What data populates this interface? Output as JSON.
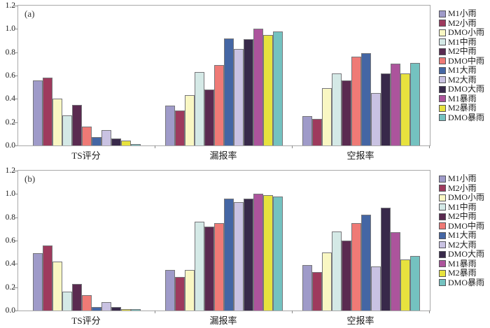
{
  "figure": {
    "background": "#ffffff",
    "axis_color": "#a9a9a9",
    "tick_color": "#8a8a8a",
    "bar_border_color": "#76767a"
  },
  "chart_data": [
    {
      "type": "bar",
      "panel_label": "(a)",
      "title": "",
      "xlabel": "",
      "ylabel": "",
      "ylim": [
        0,
        1.2
      ],
      "yticks": [
        "0.0",
        "0.2",
        "0.4",
        "0.6",
        "0.8",
        "1.0",
        "1.2"
      ],
      "grid": false,
      "legend_position": "right",
      "categories": [
        "TS评分",
        "漏报率",
        "空报率"
      ],
      "series": [
        {
          "name": "M1小雨",
          "color": "#9F9BC9",
          "values": [
            0.56,
            0.34,
            0.25
          ]
        },
        {
          "name": "M2小雨",
          "color": "#9E3A5D",
          "values": [
            0.58,
            0.3,
            0.23
          ]
        },
        {
          "name": "DMO小雨",
          "color": "#F9F7C3",
          "values": [
            0.4,
            0.43,
            0.49
          ]
        },
        {
          "name": "M1中雨",
          "color": "#D4E9E6",
          "values": [
            0.26,
            0.63,
            0.62
          ]
        },
        {
          "name": "M2中雨",
          "color": "#5A2A50",
          "values": [
            0.35,
            0.48,
            0.56
          ]
        },
        {
          "name": "DMO中雨",
          "color": "#EF7A76",
          "values": [
            0.16,
            0.69,
            0.76
          ]
        },
        {
          "name": "M1大雨",
          "color": "#4466A4",
          "values": [
            0.07,
            0.92,
            0.79
          ]
        },
        {
          "name": "M2大雨",
          "color": "#C9C2E2",
          "values": [
            0.13,
            0.83,
            0.45
          ]
        },
        {
          "name": "DMO大雨",
          "color": "#38294A",
          "values": [
            0.06,
            0.91,
            0.62
          ]
        },
        {
          "name": "M1暴雨",
          "color": "#AC549C",
          "values": [
            0.0,
            1.0,
            0.7
          ]
        },
        {
          "name": "M2暴雨",
          "color": "#E7E23E",
          "values": [
            0.04,
            0.95,
            0.62
          ]
        },
        {
          "name": "DMO暴雨",
          "color": "#74C2C0",
          "values": [
            0.01,
            0.98,
            0.71
          ]
        }
      ]
    },
    {
      "type": "bar",
      "panel_label": "(b)",
      "title": "",
      "xlabel": "",
      "ylabel": "",
      "ylim": [
        0,
        1.2
      ],
      "yticks": [
        "0.0",
        "0.2",
        "0.4",
        "0.6",
        "0.8",
        "1.0",
        "1.2"
      ],
      "grid": false,
      "legend_position": "right",
      "categories": [
        "TS评分",
        "漏报率",
        "空报率"
      ],
      "series": [
        {
          "name": "M1小雨",
          "color": "#9F9BC9",
          "values": [
            0.49,
            0.35,
            0.39
          ]
        },
        {
          "name": "M2小雨",
          "color": "#9E3A5D",
          "values": [
            0.56,
            0.29,
            0.33
          ]
        },
        {
          "name": "DMO小雨",
          "color": "#F9F7C3",
          "values": [
            0.42,
            0.35,
            0.5
          ]
        },
        {
          "name": "M1中雨",
          "color": "#D4E9E6",
          "values": [
            0.16,
            0.76,
            0.68
          ]
        },
        {
          "name": "M2中雨",
          "color": "#5A2A50",
          "values": [
            0.23,
            0.72,
            0.6
          ]
        },
        {
          "name": "DMO中雨",
          "color": "#EF7A76",
          "values": [
            0.13,
            0.75,
            0.75
          ]
        },
        {
          "name": "M1大雨",
          "color": "#4466A4",
          "values": [
            0.03,
            0.96,
            0.82
          ]
        },
        {
          "name": "M2大雨",
          "color": "#C9C2E2",
          "values": [
            0.07,
            0.93,
            0.38
          ]
        },
        {
          "name": "DMO大雨",
          "color": "#38294A",
          "values": [
            0.03,
            0.96,
            0.88
          ]
        },
        {
          "name": "M1暴雨",
          "color": "#AC549C",
          "values": [
            0.0,
            1.0,
            0.67
          ]
        },
        {
          "name": "M2暴雨",
          "color": "#E7E23E",
          "values": [
            0.01,
            0.99,
            0.44
          ]
        },
        {
          "name": "DMO暴雨",
          "color": "#74C2C0",
          "values": [
            0.01,
            0.98,
            0.47
          ]
        }
      ]
    }
  ]
}
